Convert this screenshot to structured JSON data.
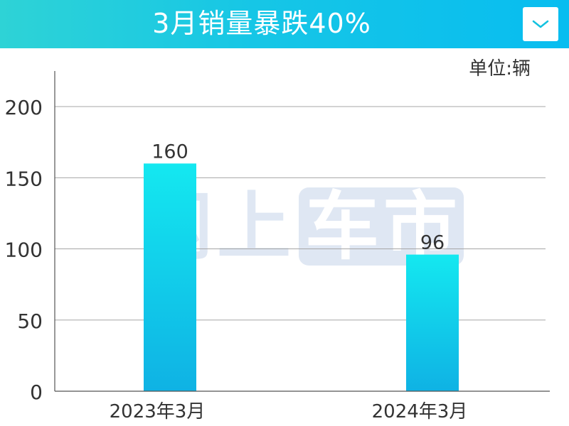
{
  "header": {
    "title": "3月销量暴跌40%"
  },
  "unit_label": "单位:辆",
  "watermark": [
    "网",
    "上",
    "车",
    "市"
  ],
  "colors": {
    "bar_top": "#14e8f0",
    "bar_bottom": "#0fb2e4",
    "grid": "#a6a6a6",
    "axis": "#555555",
    "text": "#333333"
  },
  "chart_data": {
    "type": "bar",
    "categories": [
      "2023年3月",
      "2024年3月"
    ],
    "values": [
      160,
      96
    ],
    "data_labels": [
      "160",
      "96"
    ],
    "ylim": [
      0,
      225
    ],
    "yticks": [
      0,
      50,
      100,
      150,
      200
    ],
    "title": "3月销量暴跌40%",
    "xlabel": "",
    "ylabel": "",
    "unit": "单位:辆",
    "grid": true,
    "legend": "none"
  }
}
